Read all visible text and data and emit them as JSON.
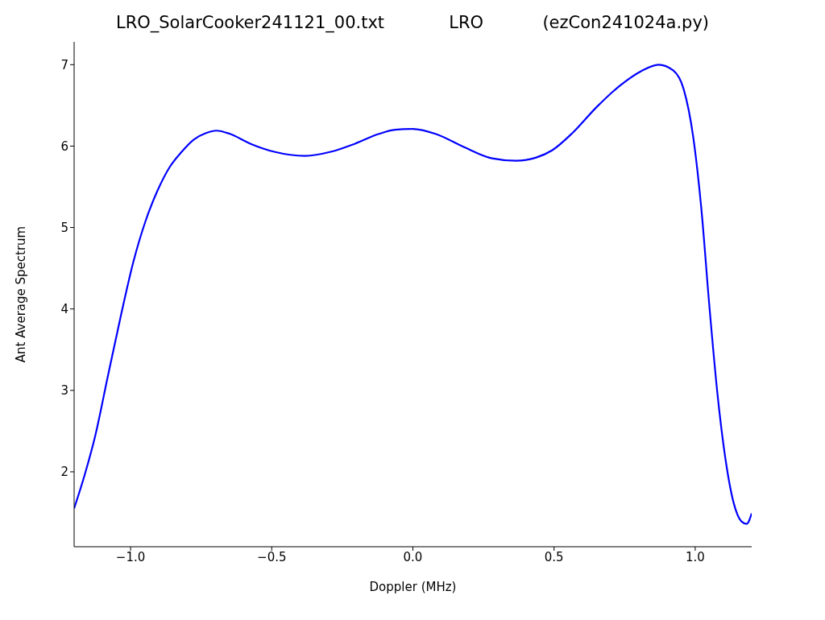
{
  "chart_data": {
    "type": "line",
    "title": "LRO_SolarCooker241121_00.txt            LRO           (ezCon241024a.py)",
    "xlabel": "Doppler (MHz)",
    "ylabel": "Ant Average Spectrum",
    "x": [
      -1.2,
      -1.162,
      -1.124,
      -1.082,
      -1.033,
      -0.99,
      -0.947,
      -0.905,
      -0.862,
      -0.819,
      -0.776,
      -0.733,
      -0.696,
      -0.648,
      -0.576,
      -0.491,
      -0.382,
      -0.291,
      -0.205,
      -0.12,
      -0.063,
      0,
      0.08,
      0.18,
      0.28,
      0.365,
      0.437,
      0.494,
      0.565,
      0.651,
      0.736,
      0.808,
      0.87,
      0.922,
      0.959,
      0.993,
      1.022,
      1.05,
      1.079,
      1.107,
      1.136,
      1.164,
      1.182,
      1.2
    ],
    "series": [
      {
        "color": "#0000ff",
        "values": [
          1.55,
          1.97,
          2.46,
          3.15,
          3.94,
          4.58,
          5.08,
          5.45,
          5.74,
          5.93,
          6.08,
          6.16,
          6.19,
          6.15,
          6.03,
          5.93,
          5.88,
          5.93,
          6.03,
          6.15,
          6.2,
          6.21,
          6.15,
          5.99,
          5.85,
          5.82,
          5.86,
          5.95,
          6.16,
          6.48,
          6.75,
          6.92,
          7.0,
          6.93,
          6.7,
          6.11,
          5.22,
          4.04,
          2.95,
          2.16,
          1.62,
          1.39,
          1.36,
          1.49
        ]
      }
    ],
    "xlim": [
      -1.2,
      1.2
    ],
    "xticks": [
      {
        "value": -1,
        "label": "−1.0"
      },
      {
        "value": -0.5,
        "label": "−0.5"
      },
      {
        "value": 0,
        "label": "0.0"
      },
      {
        "value": 0.5,
        "label": "0.5"
      },
      {
        "value": 1,
        "label": "1.0"
      }
    ],
    "ylim": [
      1.08,
      7.28
    ],
    "yticks": [
      2,
      3,
      4,
      5,
      6,
      7
    ],
    "grid": false,
    "legend": false,
    "marker": "none",
    "line_style": "solid"
  }
}
